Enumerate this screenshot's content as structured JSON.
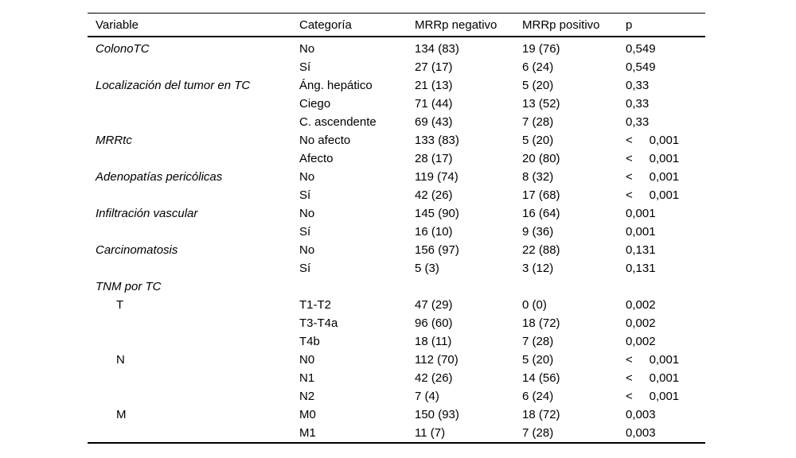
{
  "table": {
    "column_keys": [
      "variable",
      "categoria",
      "mrrp-negativo",
      "mrrp-positivo",
      "p"
    ],
    "headers": [
      "Variable",
      "Categoría",
      "MRRp negativo",
      "MRRp positivo",
      "p"
    ],
    "rows": [
      {
        "cells": [
          "ColonoTC",
          "No",
          "134 (83)",
          "19 (76)",
          "0,549"
        ],
        "style": "italic"
      },
      {
        "cells": [
          "",
          "Sí",
          "27 (17)",
          "6 (24)",
          "0,549"
        ],
        "style": ""
      },
      {
        "cells": [
          "Localización del tumor en TC",
          "Áng. hepático",
          "21 (13)",
          "5 (20)",
          "0,33"
        ],
        "style": "italic"
      },
      {
        "cells": [
          "",
          "Ciego",
          "71 (44)",
          "13 (52)",
          "0,33"
        ],
        "style": ""
      },
      {
        "cells": [
          "",
          "C. ascendente",
          "69 (43)",
          "7 (28)",
          "0,33"
        ],
        "style": ""
      },
      {
        "cells": [
          "MRRtc",
          "No afecto",
          "133 (83)",
          "5 (20)",
          "<     0,001"
        ],
        "style": "italic"
      },
      {
        "cells": [
          "",
          "Afecto",
          "28 (17)",
          "20 (80)",
          "<     0,001"
        ],
        "style": ""
      },
      {
        "cells": [
          "Adenopatías pericólicas",
          "No",
          "119 (74)",
          "8 (32)",
          "<     0,001"
        ],
        "style": "italic"
      },
      {
        "cells": [
          "",
          "Sí",
          "42 (26)",
          "17 (68)",
          "<     0,001"
        ],
        "style": ""
      },
      {
        "cells": [
          "Infiltración vascular",
          "No",
          "145 (90)",
          "16 (64)",
          "0,001"
        ],
        "style": "italic"
      },
      {
        "cells": [
          "",
          "Sí",
          "16 (10)",
          "9 (36)",
          "0,001"
        ],
        "style": ""
      },
      {
        "cells": [
          "Carcinomatosis",
          "No",
          "156 (97)",
          "22 (88)",
          "0,131"
        ],
        "style": "italic"
      },
      {
        "cells": [
          "",
          "Sí",
          "5 (3)",
          "3 (12)",
          "0,131"
        ],
        "style": ""
      },
      {
        "cells": [
          "TNM por TC",
          "",
          "",
          "",
          ""
        ],
        "style": "italic"
      },
      {
        "cells": [
          "T",
          "T1-T2",
          "47 (29)",
          "0 (0)",
          "0,002"
        ],
        "style": "indent"
      },
      {
        "cells": [
          "",
          "T3-T4a",
          "96 (60)",
          "18 (72)",
          "0,002"
        ],
        "style": ""
      },
      {
        "cells": [
          "",
          "T4b",
          "18 (11)",
          "7 (28)",
          "0,002"
        ],
        "style": ""
      },
      {
        "cells": [
          "N",
          "N0",
          "112 (70)",
          "5 (20)",
          "<     0,001"
        ],
        "style": "indent"
      },
      {
        "cells": [
          "",
          "N1",
          "42 (26)",
          "14 (56)",
          "<     0,001"
        ],
        "style": ""
      },
      {
        "cells": [
          "",
          "N2",
          "7 (4)",
          "6 (24)",
          "<     0,001"
        ],
        "style": ""
      },
      {
        "cells": [
          "M",
          "M0",
          "150 (93)",
          "18 (72)",
          "0,003"
        ],
        "style": "indent"
      },
      {
        "cells": [
          "",
          "M1",
          "11 (7)",
          "7 (28)",
          "0,003"
        ],
        "style": ""
      }
    ]
  }
}
